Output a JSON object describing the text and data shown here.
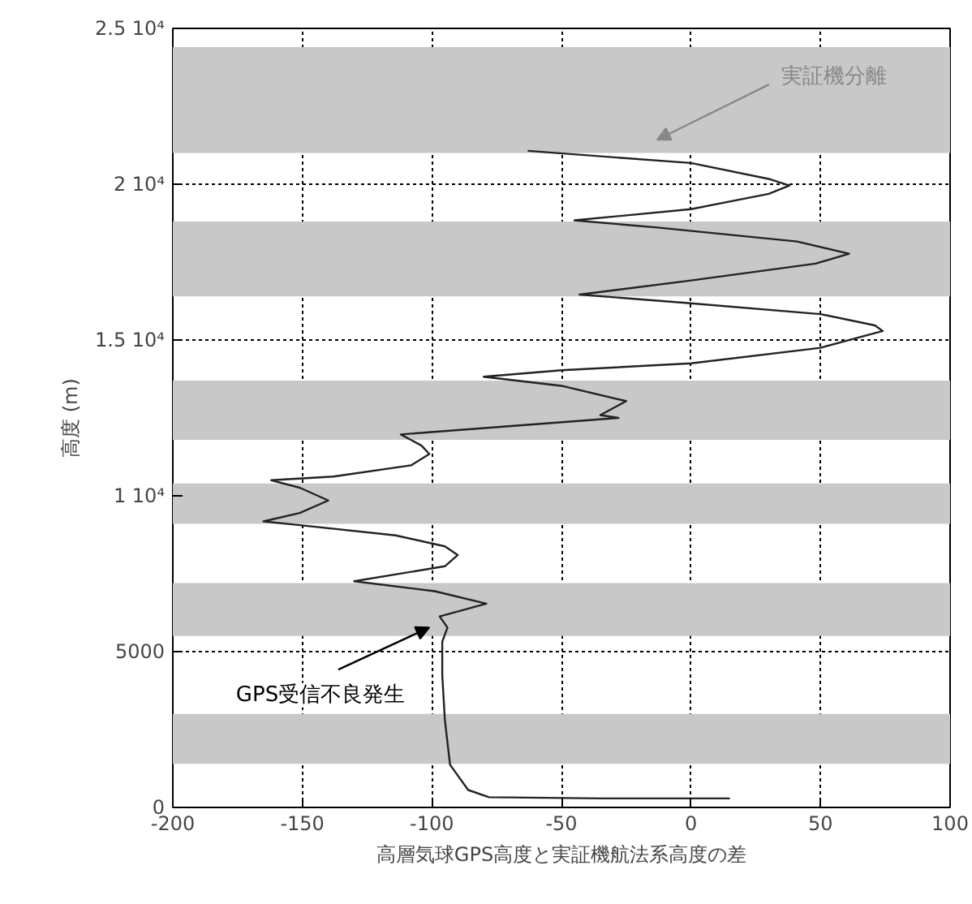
{
  "chart_data": {
    "type": "line",
    "xlabel": "高層気球GPS高度と実証機航法系高度の差",
    "ylabel": "高度 (m)",
    "xlim": [
      -200,
      100
    ],
    "ylim": [
      0,
      25000
    ],
    "xticks": [
      -200,
      -150,
      -100,
      -50,
      0,
      50,
      100
    ],
    "yticks": [
      0,
      5000,
      {
        "value": 10000,
        "label": "1 10⁴"
      },
      {
        "value": 15000,
        "label": "1.5 10⁴"
      },
      {
        "value": 20000,
        "label": "2 10⁴"
      },
      {
        "value": 25000,
        "label": "2.5 10⁴"
      }
    ],
    "grid": true,
    "marker": "none",
    "line_style": "solid",
    "series": [
      {
        "color": "#222222",
        "x": [
          15,
          -35,
          -78,
          -86,
          -93,
          -95,
          -96,
          -96,
          -94,
          -97,
          -79,
          -99,
          -130,
          -95,
          -90,
          -95,
          -114,
          -151,
          -165,
          -151,
          -140,
          -151,
          -162,
          -138,
          -108,
          -101,
          -104,
          -112,
          -28,
          -35,
          -25,
          -50,
          -80,
          -50,
          0,
          50,
          74,
          71,
          50,
          -2,
          -43,
          0,
          48,
          61,
          41,
          -13,
          -45,
          0,
          30,
          38,
          30,
          0,
          -63
        ],
        "values": [
          290,
          290,
          330,
          560,
          1370,
          2810,
          4240,
          5320,
          5770,
          6130,
          6540,
          6940,
          7260,
          7740,
          8100,
          8380,
          8730,
          9060,
          9180,
          9450,
          9850,
          10260,
          10500,
          10620,
          10980,
          11340,
          11610,
          11970,
          12500,
          12590,
          13040,
          13530,
          13820,
          14030,
          14250,
          14750,
          15290,
          15470,
          15830,
          16190,
          16460,
          16910,
          17450,
          17770,
          18160,
          18610,
          18840,
          19200,
          19690,
          19960,
          20170,
          20680,
          21070
        ]
      }
    ],
    "bands": [
      {
        "axis": "y",
        "from": 21000,
        "to": 24400,
        "color": "#c8c8c8"
      },
      {
        "axis": "y",
        "from": 16400,
        "to": 18800,
        "color": "#c8c8c8"
      },
      {
        "axis": "y",
        "from": 11800,
        "to": 13700,
        "color": "#c8c8c8"
      },
      {
        "axis": "y",
        "from": 9100,
        "to": 10400,
        "color": "#c8c8c8"
      },
      {
        "axis": "y",
        "from": 5500,
        "to": 7200,
        "color": "#c8c8c8"
      },
      {
        "axis": "y",
        "from": 1400,
        "to": 3000,
        "color": "#c8c8c8"
      }
    ],
    "annotations": [
      "実証機分離",
      "GPS受信不良発生"
    ]
  }
}
